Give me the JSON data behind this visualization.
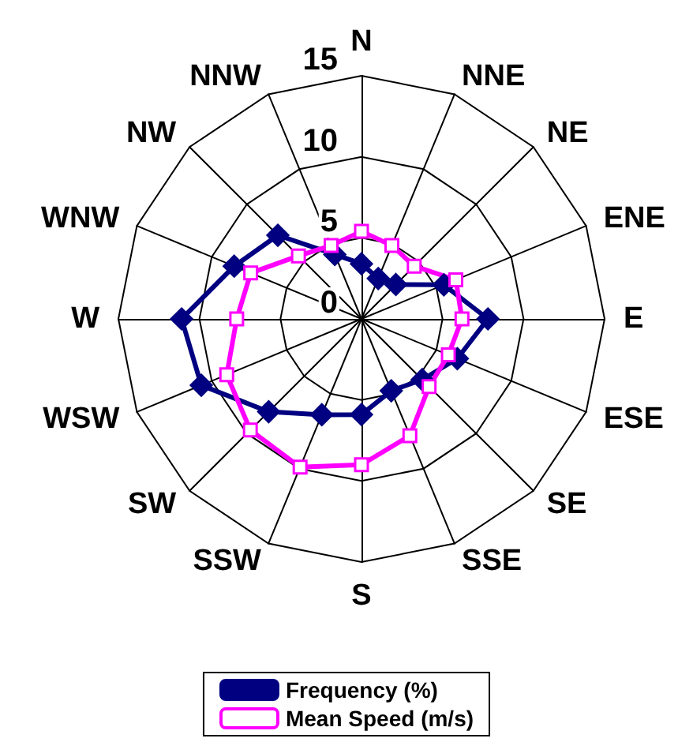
{
  "chart_data": {
    "type": "radar",
    "categories": [
      "N",
      "NNE",
      "NE",
      "ENE",
      "E",
      "ESE",
      "SE",
      "SSE",
      "S",
      "SSW",
      "SW",
      "WSW",
      "W",
      "WNW",
      "NW",
      "NNW"
    ],
    "ylim": [
      0,
      15
    ],
    "yticks": [
      0,
      5,
      10,
      15
    ],
    "grid": true,
    "legend": "bottom",
    "line_style": "solid",
    "series": [
      {
        "name": "Frequency (%)",
        "color": "#000080",
        "marker": "diamond",
        "values": [
          3.4,
          2.7,
          3.0,
          5.5,
          7.8,
          6.4,
          5.3,
          4.8,
          5.9,
          6.4,
          8.1,
          10.7,
          11.1,
          8.5,
          7.3,
          4.3
        ]
      },
      {
        "name": "Mean Speed (m/s)",
        "color": "#ff00ff",
        "marker": "square",
        "values": [
          5.4,
          4.9,
          4.6,
          6.3,
          6.2,
          5.8,
          5.9,
          7.8,
          9.0,
          9.9,
          9.7,
          9.0,
          7.7,
          7.4,
          5.5,
          4.9
        ]
      }
    ]
  }
}
